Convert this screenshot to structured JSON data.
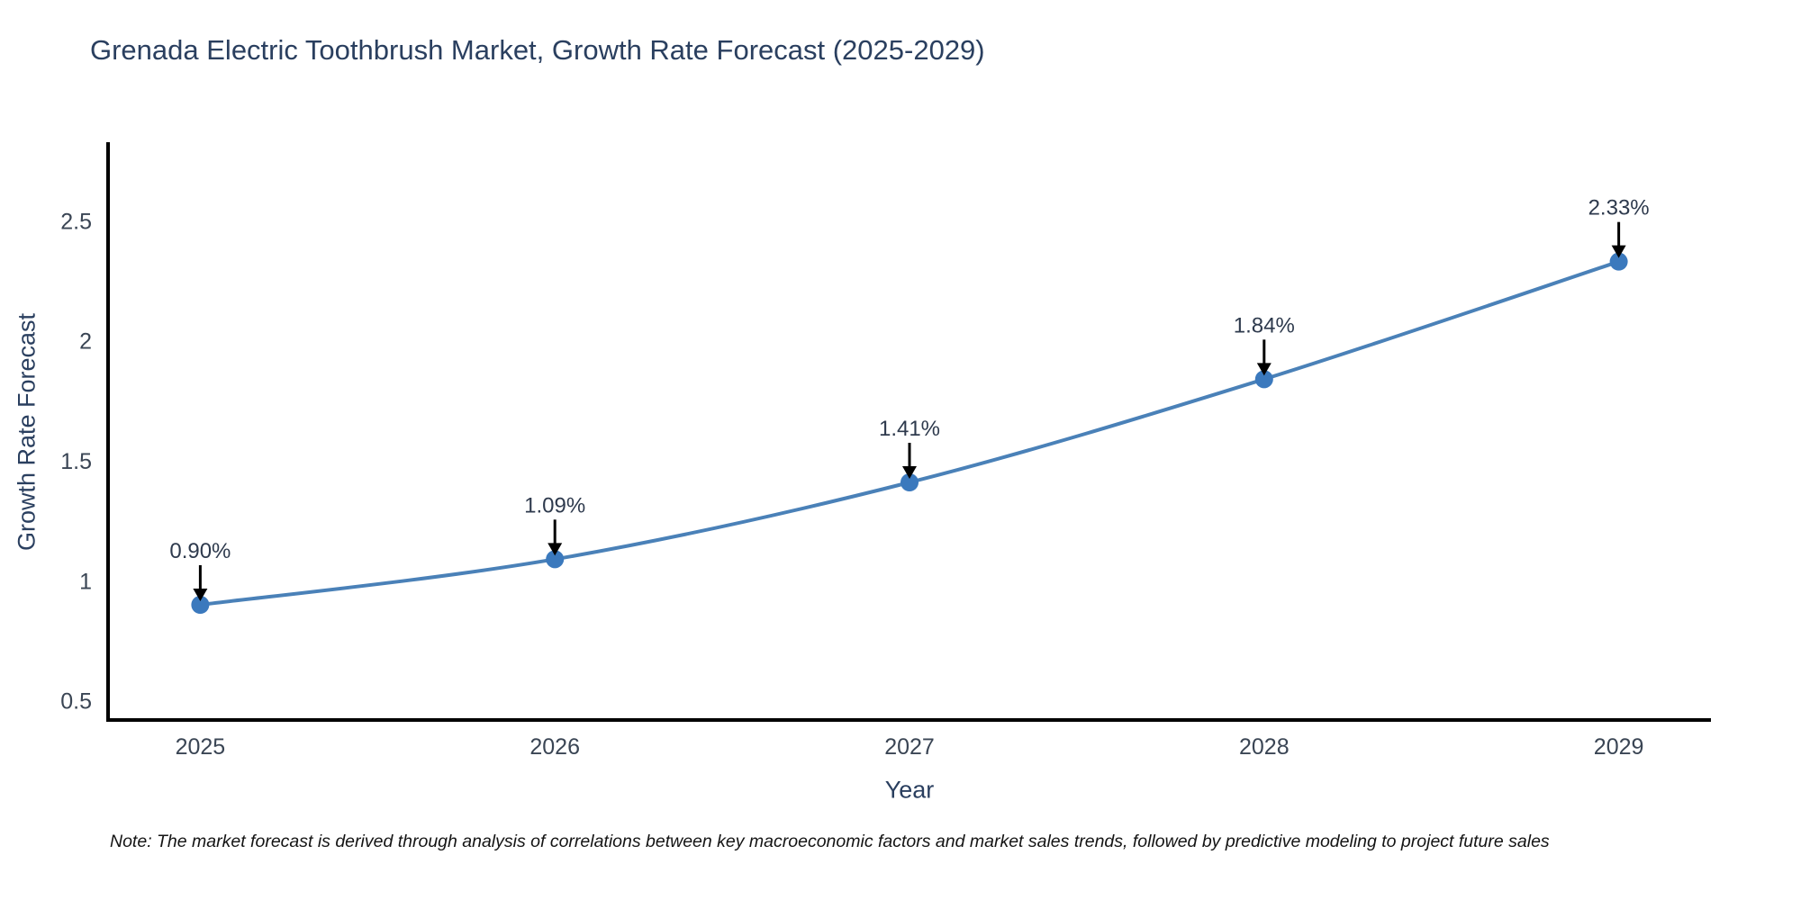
{
  "chart_data": {
    "type": "line",
    "title": "Grenada Electric Toothbrush Market, Growth Rate Forecast (2025-2029)",
    "xlabel": "Year",
    "ylabel": "Growth Rate Forecast",
    "x": [
      2025,
      2026,
      2027,
      2028,
      2029
    ],
    "values": [
      0.9,
      1.09,
      1.41,
      1.84,
      2.33
    ],
    "point_labels": [
      "0.90%",
      "1.09%",
      "1.41%",
      "1.84%",
      "2.33%"
    ],
    "x_tick_labels": [
      "2025",
      "2026",
      "2027",
      "2028",
      "2029"
    ],
    "y_ticks": [
      0.5,
      1.0,
      1.5,
      2.0,
      2.5
    ],
    "y_tick_labels": [
      "0.5",
      "1",
      "1.5",
      "2",
      "2.5"
    ],
    "x_range": [
      2024.74,
      2029.26
    ],
    "y_range": [
      0.42,
      2.82
    ],
    "grid": false,
    "legend": "none",
    "line_color": "#4a81b8",
    "marker_color": "#3b79bd",
    "axis_color": "#000000",
    "title_color": "#2a3f5f",
    "tick_color": "#3a4554",
    "label_color": "#2e3a4d",
    "arrow_color": "#000000"
  },
  "note": {
    "text": "Note: The market forecast is derived through analysis of correlations between key macroeconomic factors and market sales trends, followed by predictive modeling to project future sales"
  }
}
